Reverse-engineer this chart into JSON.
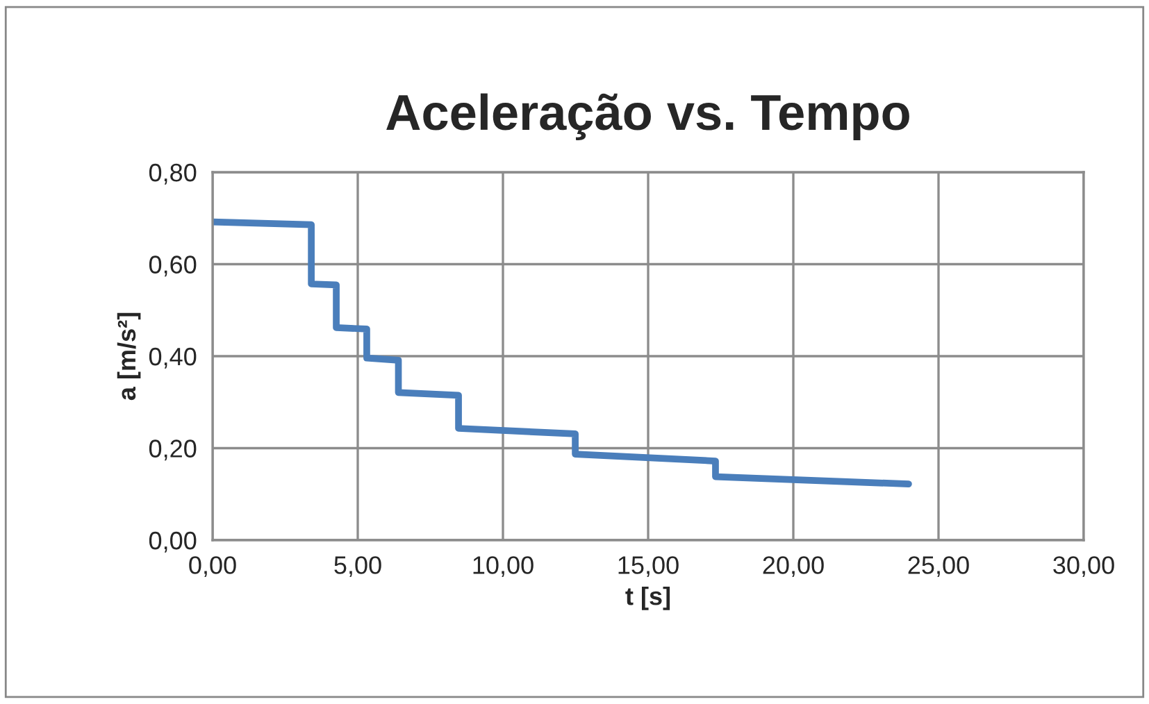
{
  "chart_data": {
    "type": "line",
    "title": "Aceleração vs. Tempo",
    "xlabel": "t [s]",
    "ylabel": "a [m/s²]",
    "series": [
      {
        "color": "#4a7ebb",
        "x": [
          0,
          3.4,
          3.4,
          4.26,
          4.26,
          5.31,
          5.31,
          6.4,
          6.4,
          8.47,
          8.47,
          12.49,
          12.49,
          17.32,
          17.32,
          23.97
        ],
        "values": [
          0.692,
          0.686,
          0.557,
          0.555,
          0.462,
          0.459,
          0.396,
          0.391,
          0.321,
          0.315,
          0.243,
          0.231,
          0.187,
          0.172,
          0.138,
          0.122
        ]
      }
    ],
    "xlim": [
      0,
      30
    ],
    "ylim": [
      0,
      0.8
    ],
    "xticks": [
      {
        "value": 0,
        "label": "0,00"
      },
      {
        "value": 5,
        "label": "5,00"
      },
      {
        "value": 10,
        "label": "10,00"
      },
      {
        "value": 15,
        "label": "15,00"
      },
      {
        "value": 20,
        "label": "20,00"
      },
      {
        "value": 25,
        "label": "25,00"
      },
      {
        "value": 30,
        "label": "30,00"
      }
    ],
    "yticks": [
      {
        "value": 0,
        "label": "0,00"
      },
      {
        "value": 0.2,
        "label": "0,20"
      },
      {
        "value": 0.4,
        "label": "0,40"
      },
      {
        "value": 0.6,
        "label": "0,60"
      },
      {
        "value": 0.8,
        "label": "0,80"
      }
    ],
    "grid": true,
    "legend": false,
    "marker": "none",
    "line_style": "solid"
  }
}
